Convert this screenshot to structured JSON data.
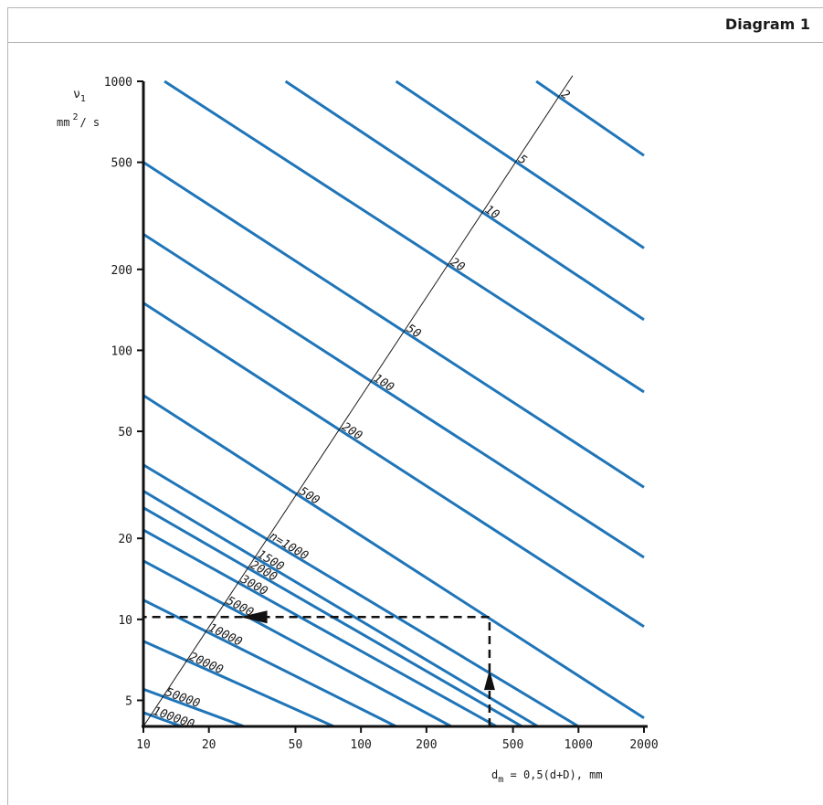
{
  "header": {
    "title": "Diagram 1"
  },
  "chart_data": {
    "type": "line",
    "xlabel": {
      "prefix": "d",
      "sub": "m",
      "rest": " = 0,5(d+D), mm"
    },
    "ylabel": {
      "nu": "ν",
      "sub": "1",
      "unit_a": "mm",
      "sup": "2",
      "unit_b": "/ s"
    },
    "x_scale": "log",
    "y_scale": "log",
    "xlim": [
      10,
      2000
    ],
    "ylim": [
      4,
      1000
    ],
    "x_ticks": [
      10,
      20,
      50,
      100,
      200,
      500,
      1000,
      2000
    ],
    "x_tick_labels": [
      "10",
      "20",
      "50",
      "100",
      "200",
      "500",
      "1000",
      "2000"
    ],
    "y_ticks": [
      5,
      10,
      20,
      50,
      100,
      200,
      500,
      1000
    ],
    "y_tick_labels": [
      "5",
      "10",
      "20",
      "50",
      "100",
      "200",
      "500",
      "1000"
    ],
    "line_color": "#1f75b8",
    "series": [
      {
        "name": "2",
        "label": "2",
        "points": [
          [
            640,
            1000
          ],
          [
            2000,
            530
          ]
        ]
      },
      {
        "name": "5",
        "label": "5",
        "points": [
          [
            145,
            1000
          ],
          [
            2000,
            240
          ]
        ]
      },
      {
        "name": "10",
        "label": "10",
        "points": [
          [
            45,
            1000
          ],
          [
            2000,
            130
          ]
        ]
      },
      {
        "name": "20",
        "label": "20",
        "points": [
          [
            12.5,
            1000
          ],
          [
            2000,
            70
          ]
        ]
      },
      {
        "name": "50",
        "label": "50",
        "points": [
          [
            10,
            500
          ],
          [
            2000,
            31
          ]
        ]
      },
      {
        "name": "100",
        "label": "100",
        "points": [
          [
            10,
            270
          ],
          [
            2000,
            17
          ]
        ]
      },
      {
        "name": "200",
        "label": "200",
        "points": [
          [
            10,
            150
          ],
          [
            2000,
            9.4
          ]
        ]
      },
      {
        "name": "500",
        "label": "500",
        "points": [
          [
            10,
            68
          ],
          [
            2000,
            4.3
          ]
        ]
      },
      {
        "name": "1000",
        "label": "n=1000",
        "points": [
          [
            10,
            37.5
          ],
          [
            1000,
            4
          ]
        ]
      },
      {
        "name": "1500",
        "label": "1500",
        "points": [
          [
            10,
            30
          ],
          [
            650,
            4
          ]
        ]
      },
      {
        "name": "2000",
        "label": "2000",
        "points": [
          [
            10,
            26
          ],
          [
            550,
            4
          ]
        ]
      },
      {
        "name": "3000",
        "label": "3000",
        "points": [
          [
            10,
            21.5
          ],
          [
            420,
            4
          ]
        ]
      },
      {
        "name": "5000",
        "label": "5000",
        "points": [
          [
            10,
            16.5
          ],
          [
            260,
            4
          ]
        ]
      },
      {
        "name": "10000",
        "label": "10000",
        "points": [
          [
            10,
            11.8
          ],
          [
            145,
            4
          ]
        ]
      },
      {
        "name": "20000",
        "label": "20000",
        "points": [
          [
            10,
            8.3
          ],
          [
            75,
            4
          ]
        ]
      },
      {
        "name": "50000",
        "label": "50000",
        "points": [
          [
            10,
            5.5
          ],
          [
            29,
            4
          ]
        ]
      },
      {
        "name": "100000",
        "label": "100000",
        "points": [
          [
            10,
            4.5
          ],
          [
            15,
            4
          ]
        ]
      }
    ],
    "label_diagonal": {
      "points": [
        [
          10,
          4
        ],
        [
          940,
          1050
        ]
      ]
    },
    "example_path": {
      "points": [
        [
          390,
          4
        ],
        [
          390,
          10.2
        ],
        [
          10,
          10.2
        ]
      ],
      "arrows": [
        "up",
        "left"
      ]
    }
  }
}
